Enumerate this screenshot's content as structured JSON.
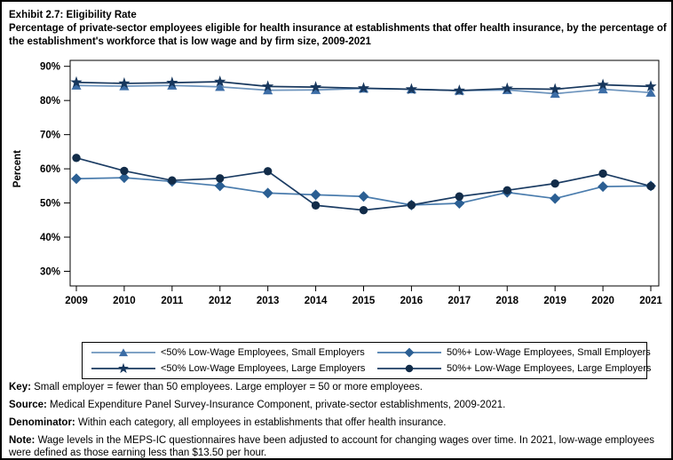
{
  "title": {
    "line1": "Exhibit 2.7: Eligibility Rate",
    "line2": "Percentage of private-sector employees eligible for health insurance at establishments that offer health insurance, by the percentage of the establishment's workforce that is low wage and by firm size, 2009-2021"
  },
  "chart_data": {
    "type": "line",
    "title": "",
    "xlabel": "",
    "ylabel": "Percent",
    "ylim": [
      30,
      90
    ],
    "ytick_step": 10,
    "ytick_suffix": "%",
    "grid": false,
    "legend_position": "bottom-box",
    "categories": [
      "2009",
      "2010",
      "2011",
      "2012",
      "2013",
      "2014",
      "2015",
      "2016",
      "2017",
      "2018",
      "2019",
      "2020",
      "2021"
    ],
    "series": [
      {
        "name": "<50% Low-Wage Employees, Small Employers",
        "marker": "triangle",
        "marker_color": "#3c6da6",
        "line_color": "#6d94bd",
        "values": [
          84.4,
          84.2,
          84.4,
          84.0,
          83.0,
          83.1,
          83.5,
          83.3,
          82.9,
          83.1,
          82.0,
          83.3,
          82.3
        ]
      },
      {
        "name": "<50% Low-Wage Employees, Large Employers",
        "marker": "star",
        "marker_color": "#17375d",
        "line_color": "#17375d",
        "values": [
          85.3,
          85.0,
          85.2,
          85.5,
          84.1,
          83.9,
          83.6,
          83.3,
          82.9,
          83.5,
          83.3,
          84.6,
          84.1
        ]
      },
      {
        "name": "50%+ Low-Wage Employees, Small Employers",
        "marker": "diamond",
        "marker_color": "#2b5f93",
        "line_color": "#4a7cad",
        "values": [
          57.1,
          57.4,
          56.3,
          55.0,
          52.9,
          52.4,
          51.9,
          49.4,
          49.9,
          53.1,
          51.3,
          54.8,
          55.0
        ]
      },
      {
        "name": "50%+ Low-Wage Employees, Large Employers",
        "marker": "circle",
        "marker_color": "#122c49",
        "line_color": "#1b3c63",
        "values": [
          63.2,
          59.4,
          56.6,
          57.2,
          59.3,
          49.3,
          47.9,
          49.4,
          51.9,
          53.7,
          55.7,
          58.6,
          54.9
        ]
      }
    ],
    "axis_color": "#000000",
    "text_color": "#000000"
  },
  "footnotes": [
    {
      "label": "Key:",
      "text": " Small employer = fewer than 50 employees. Large employer = 50 or more employees."
    },
    {
      "label": "Source:",
      "text": " Medical Expenditure Panel Survey-Insurance Component, private-sector establishments, 2009-2021."
    },
    {
      "label": "Denominator:",
      "text": " Within each category, all employees in establishments that offer health insurance."
    },
    {
      "label": "Note:",
      "text": " Wage levels in the MEPS-IC questionnaires have been adjusted to account for changing wages over time. In 2021, low-wage employees were defined as those earning less than $13.50 per hour."
    }
  ]
}
